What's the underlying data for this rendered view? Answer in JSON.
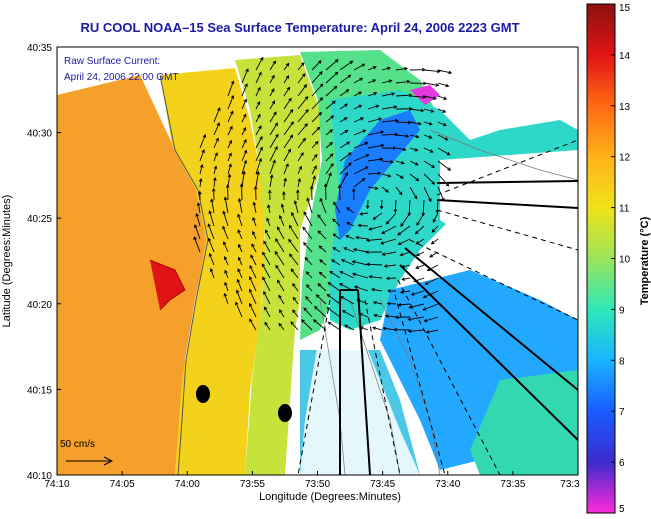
{
  "title": "RU COOL  NOAA–15  Sea Surface Temperature:  April 24, 2006 2223 GMT",
  "overlay": {
    "current_label": "Raw Surface Current:",
    "current_time": "April 24, 2006 22:00 GMT",
    "scale_label": "50 cm/s",
    "text_color": "#1a1aa6"
  },
  "axes": {
    "xlabel": "Longitude (Degrees:Minutes)",
    "ylabel": "Latitude (Degrees:Minutes)",
    "xticks": [
      "74:10",
      "74:05",
      "74:00",
      "73:55",
      "73:50",
      "73:45",
      "73:40",
      "73:35",
      "73:3"
    ],
    "yticks": [
      "40:35",
      "40:30",
      "40:25",
      "40:20",
      "40:15",
      "40:10"
    ]
  },
  "colorbar": {
    "label": "Temperature (°C)",
    "ticks": [
      "15",
      "14",
      "13",
      "12",
      "11",
      "10",
      "9",
      "8",
      "7",
      "6",
      "5"
    ],
    "min": 5,
    "max": 15,
    "colors": [
      "#ff2bd9",
      "#3b2bcc",
      "#1a5cff",
      "#1ab4ff",
      "#2ee8b8",
      "#9be45a",
      "#f0e21a",
      "#ffb21a",
      "#ff6a14",
      "#e01414",
      "#8c1010"
    ]
  },
  "markers": {
    "radar_sites": 2
  }
}
